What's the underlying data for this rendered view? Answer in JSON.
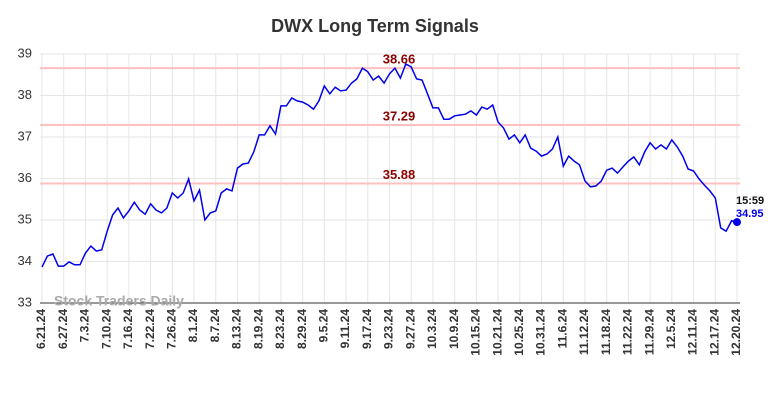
{
  "chart_data": {
    "type": "line",
    "title": "DWX Long Term Signals",
    "watermark": "Stock Traders Daily",
    "categories": [
      "6.21.24",
      null,
      null,
      null,
      "6.27.24",
      null,
      null,
      null,
      "7.3.24",
      null,
      null,
      null,
      "7.10.24",
      null,
      null,
      null,
      "7.16.24",
      null,
      null,
      null,
      "7.22.24",
      null,
      null,
      null,
      "7.26.24",
      null,
      null,
      null,
      "8.1.24",
      null,
      null,
      null,
      "8.7.24",
      null,
      null,
      null,
      "8.13.24",
      null,
      null,
      null,
      "8.19.24",
      null,
      null,
      null,
      "8.23.24",
      null,
      null,
      null,
      "8.29.24",
      null,
      null,
      null,
      "9.5.24",
      null,
      null,
      null,
      "9.11.24",
      null,
      null,
      null,
      "9.17.24",
      null,
      null,
      null,
      "9.23.24",
      null,
      null,
      null,
      "9.27.24",
      null,
      null,
      null,
      "10.3.24",
      null,
      null,
      null,
      "10.9.24",
      null,
      null,
      null,
      "10.15.24",
      null,
      null,
      null,
      "10.21.24",
      null,
      null,
      null,
      "10.25.24",
      null,
      null,
      null,
      "10.31.24",
      null,
      null,
      null,
      "11.6.24",
      null,
      null,
      null,
      "11.12.24",
      null,
      null,
      null,
      "11.18.24",
      null,
      null,
      null,
      "11.22.24",
      null,
      null,
      null,
      "11.29.24",
      null,
      null,
      null,
      "12.5.24",
      null,
      null,
      null,
      "12.11.24",
      null,
      null,
      null,
      "12.17.24",
      null,
      null,
      null,
      "12.20.24"
    ],
    "values": [
      33.87,
      34.13,
      34.18,
      33.89,
      33.89,
      33.99,
      33.92,
      33.92,
      34.2,
      34.37,
      34.25,
      34.28,
      34.73,
      35.12,
      35.29,
      35.05,
      35.22,
      35.43,
      35.24,
      35.14,
      35.39,
      35.24,
      35.17,
      35.29,
      35.65,
      35.53,
      35.65,
      35.99,
      35.46,
      35.72,
      35.0,
      35.17,
      35.22,
      35.65,
      35.75,
      35.7,
      36.25,
      36.35,
      36.37,
      36.64,
      37.05,
      37.05,
      37.27,
      37.07,
      37.75,
      37.75,
      37.94,
      37.87,
      37.84,
      37.77,
      37.67,
      37.87,
      38.23,
      38.04,
      38.2,
      38.11,
      38.13,
      38.3,
      38.4,
      38.66,
      38.57,
      38.37,
      38.47,
      38.3,
      38.52,
      38.66,
      38.42,
      38.76,
      38.69,
      38.4,
      38.37,
      38.04,
      37.7,
      37.7,
      37.43,
      37.43,
      37.51,
      37.53,
      37.55,
      37.63,
      37.53,
      37.72,
      37.67,
      37.77,
      37.36,
      37.22,
      36.95,
      37.05,
      36.86,
      37.05,
      36.73,
      36.66,
      36.54,
      36.59,
      36.71,
      37.0,
      36.3,
      36.54,
      36.42,
      36.33,
      35.94,
      35.8,
      35.82,
      35.94,
      36.2,
      36.25,
      36.13,
      36.28,
      36.42,
      36.52,
      36.33,
      36.64,
      36.86,
      36.71,
      36.81,
      36.71,
      36.93,
      36.76,
      36.54,
      36.23,
      36.18,
      35.99,
      35.84,
      35.7,
      35.53,
      34.81,
      34.73,
      34.98,
      34.95
    ],
    "color": "#0000ee",
    "last_time": "15:59",
    "hlines": [
      38.66,
      37.29,
      35.88
    ],
    "hline_color": "#ffc0c0",
    "hline_label_color": "#8b0000",
    "ylim": [
      33,
      39
    ],
    "yticks": [
      33,
      34,
      35,
      36,
      37,
      38,
      39
    ],
    "grid": true
  }
}
